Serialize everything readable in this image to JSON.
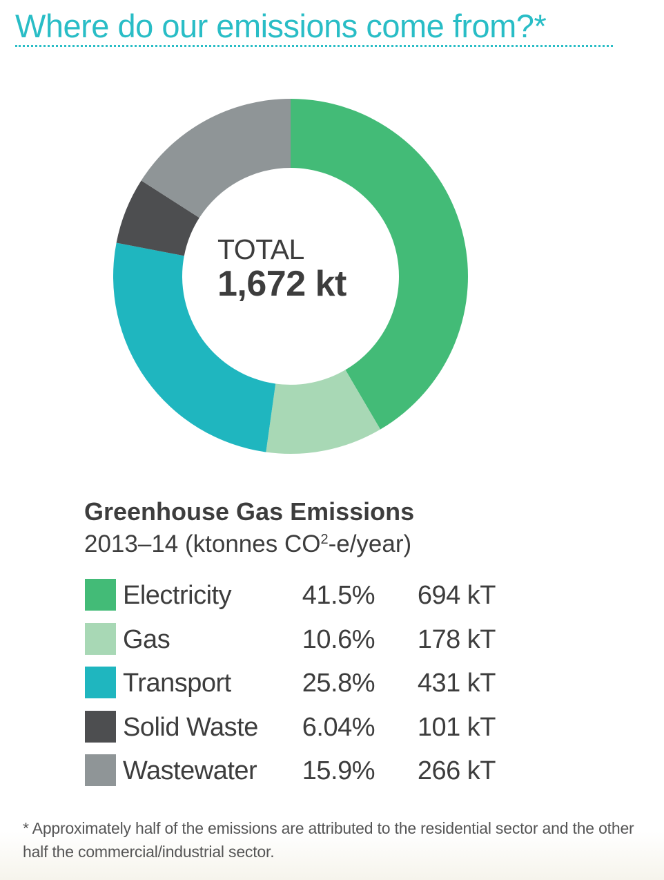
{
  "headline": "Where do our emissions come from?*",
  "accent_color": "#29bdc6",
  "footnote": "* Approximately half of the emissions are attributed to the residential sector and the other half the commercial/industrial sector.",
  "chart_data": {
    "type": "pie",
    "variant": "donut",
    "center_label": "TOTAL",
    "center_value": "1,672 kt",
    "title": "Greenhouse Gas Emissions",
    "subtitle_prefix": "2013–14 (ktonnes CO",
    "subtitle_superscript": "2",
    "subtitle_suffix": "-e/year)",
    "unit": "kT",
    "legend_placement": "bottom",
    "categories": [
      "Electricity",
      "Gas",
      "Transport",
      "Solid Waste",
      "Wastewater"
    ],
    "percent_labels": [
      "41.5%",
      "10.6%",
      "25.8%",
      "6.04%",
      "15.9%"
    ],
    "value_labels": [
      "694 kT",
      "178 kT",
      "431 kT",
      "101 kT",
      "266 kT"
    ],
    "values": [
      694,
      178,
      431,
      101,
      266
    ],
    "colors": [
      "#43bb77",
      "#a8d8b5",
      "#1fb6bf",
      "#4d4e50",
      "#8f9597"
    ]
  }
}
